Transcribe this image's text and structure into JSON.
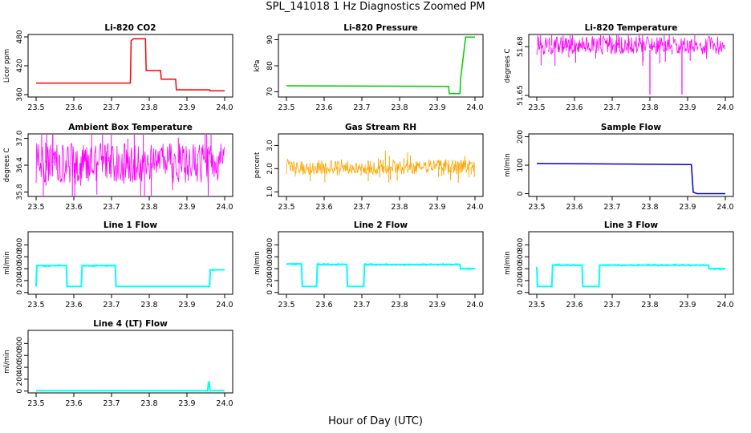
{
  "figure": {
    "title": "SPL_141018  1 Hz Diagnostics Zoomed PM",
    "xlabel": "Hour of Day (UTC)"
  },
  "chart_data": [
    {
      "type": "line",
      "title": "Li-820 CO2",
      "ylabel": "Licor ppm",
      "color": "#ff0000",
      "xlim": [
        23.5,
        24.0
      ],
      "ylim": [
        355,
        485
      ],
      "xticks": [
        "23.5",
        "23.6",
        "23.7",
        "23.8",
        "23.9",
        "24.0"
      ],
      "yticks": [
        360,
        420,
        480
      ],
      "x": [
        23.5,
        23.75,
        23.752,
        23.758,
        23.79,
        23.792,
        23.83,
        23.832,
        23.87,
        23.872,
        23.96,
        23.962,
        24.0
      ],
      "y": [
        384,
        384,
        472,
        476,
        476,
        410,
        410,
        392,
        392,
        370,
        370,
        368,
        368
      ]
    },
    {
      "type": "line",
      "title": "Li-820 Pressure",
      "ylabel": "kPa",
      "color": "#00cc00",
      "xlim": [
        23.5,
        24.0
      ],
      "ylim": [
        68,
        92
      ],
      "xticks": [
        "23.5",
        "23.6",
        "23.7",
        "23.8",
        "23.9",
        "24.0"
      ],
      "yticks": [
        70,
        80,
        90
      ],
      "x": [
        23.5,
        23.93,
        23.932,
        23.96,
        23.962,
        23.975,
        23.978,
        24.0
      ],
      "y": [
        72.3,
        72.1,
        69.3,
        69.3,
        75,
        91,
        91,
        91
      ]
    },
    {
      "type": "line",
      "title": "Li-820 Temperature",
      "ylabel": "degrees C",
      "color": "#ff00ff",
      "xlim": [
        23.5,
        24.0
      ],
      "ylim": [
        51.649,
        51.6875
      ],
      "xticks": [
        "23.5",
        "23.6",
        "23.7",
        "23.8",
        "23.9",
        "24.0"
      ],
      "yticks": [
        51.65,
        51.68
      ],
      "band": [
        51.675,
        51.6865
      ],
      "x": [
        23.5,
        23.6,
        23.7,
        23.8,
        23.9,
        24.0
      ],
      "y": [
        51.68,
        51.68,
        51.68,
        51.68,
        51.68,
        51.68
      ]
    },
    {
      "type": "line",
      "title": "Ambient Box Temperature",
      "ylabel": "degrees C",
      "color": "#ff00ff",
      "xlim": [
        23.5,
        24.0
      ],
      "ylim": [
        35.7,
        37.1
      ],
      "xticks": [
        "23.5",
        "23.6",
        "23.7",
        "23.8",
        "23.9",
        "24.0"
      ],
      "yticks": [
        "35.8",
        "36.4",
        "37.0"
      ],
      "band": [
        36.0,
        36.9
      ],
      "x": [
        23.5,
        23.6,
        23.7,
        23.8,
        23.9,
        24.0
      ],
      "y": [
        36.45,
        36.45,
        36.45,
        36.45,
        36.45,
        36.45
      ]
    },
    {
      "type": "line",
      "title": "Gas Stream RH",
      "ylabel": "percent",
      "color": "#ffa500",
      "xlim": [
        23.5,
        24.0
      ],
      "ylim": [
        0.8,
        3.5
      ],
      "xticks": [
        "23.5",
        "23.6",
        "23.7",
        "23.8",
        "23.9",
        "24.0"
      ],
      "yticks": [
        "1.0",
        "2.0",
        "3.0"
      ],
      "band": [
        1.75,
        2.4
      ],
      "x": [
        23.5,
        23.6,
        23.7,
        23.8,
        23.9,
        24.0
      ],
      "y": [
        2.05,
        2.05,
        2.05,
        2.05,
        2.05,
        2.05
      ]
    },
    {
      "type": "line",
      "title": "Sample Flow",
      "ylabel": "ml/min",
      "color": "#0000cc",
      "xlim": [
        23.5,
        24.0
      ],
      "ylim": [
        -10,
        210
      ],
      "xticks": [
        "23.5",
        "23.6",
        "23.7",
        "23.8",
        "23.9",
        "24.0"
      ],
      "yticks": [
        0,
        100,
        200
      ],
      "x": [
        23.5,
        23.75,
        23.91,
        23.915,
        23.925,
        24.0
      ],
      "y": [
        106,
        104,
        102,
        5,
        0,
        0
      ]
    },
    {
      "type": "line",
      "title": "Line 1 Flow",
      "ylabel": "ml/min",
      "color": "#00ffff",
      "xlim": [
        23.5,
        24.0
      ],
      "ylim": [
        -30,
        1020
      ],
      "xticks": [
        "23.5",
        "23.6",
        "23.7",
        "23.8",
        "23.9",
        "24.0"
      ],
      "yticks": [
        0,
        200,
        400,
        600,
        800
      ],
      "x": [
        23.5,
        23.502,
        23.58,
        23.582,
        23.62,
        23.622,
        23.71,
        23.712,
        23.96,
        23.962,
        24.0
      ],
      "y": [
        100,
        450,
        450,
        100,
        100,
        450,
        450,
        100,
        100,
        380,
        380
      ]
    },
    {
      "type": "line",
      "title": "Line 2 Flow",
      "ylabel": "ml/min",
      "color": "#00ffff",
      "xlim": [
        23.5,
        24.0
      ],
      "ylim": [
        -30,
        1020
      ],
      "xticks": [
        "23.5",
        "23.6",
        "23.7",
        "23.8",
        "23.9",
        "24.0"
      ],
      "yticks": [
        0,
        200,
        400,
        600,
        800
      ],
      "x": [
        23.5,
        23.54,
        23.542,
        23.58,
        23.582,
        23.66,
        23.662,
        23.705,
        23.707,
        23.96,
        23.962,
        24.0
      ],
      "y": [
        480,
        480,
        100,
        100,
        470,
        470,
        100,
        100,
        470,
        470,
        400,
        400
      ]
    },
    {
      "type": "line",
      "title": "Line 3 Flow",
      "ylabel": "ml/min",
      "color": "#00ffff",
      "xlim": [
        23.5,
        24.0
      ],
      "ylim": [
        -30,
        1020
      ],
      "xticks": [
        "23.5",
        "23.6",
        "23.7",
        "23.8",
        "23.9",
        "24.0"
      ],
      "yticks": [
        0,
        200,
        400,
        600,
        800
      ],
      "x": [
        23.5,
        23.502,
        23.54,
        23.542,
        23.62,
        23.622,
        23.665,
        23.667,
        23.955,
        23.957,
        24.0
      ],
      "y": [
        430,
        100,
        100,
        460,
        460,
        100,
        100,
        460,
        460,
        400,
        400
      ]
    },
    {
      "type": "line",
      "title": "Line 4 (LT) Flow",
      "ylabel": "ml/min",
      "color": "#00ffff",
      "xlim": [
        23.5,
        24.0
      ],
      "ylim": [
        -30,
        1020
      ],
      "xticks": [
        "23.5",
        "23.6",
        "23.7",
        "23.8",
        "23.9",
        "24.0"
      ],
      "yticks": [
        0,
        200,
        400,
        600,
        800
      ],
      "x": [
        23.5,
        23.955,
        23.957,
        23.959,
        23.961,
        24.0
      ],
      "y": [
        8,
        8,
        150,
        150,
        8,
        8
      ]
    }
  ]
}
